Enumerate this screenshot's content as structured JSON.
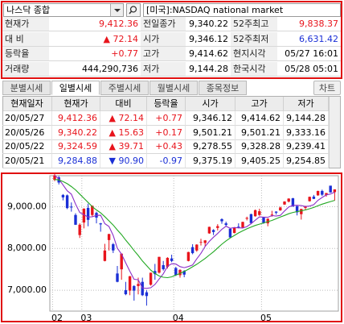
{
  "header": {
    "index": "나스닥 종합",
    "market": "[미국]:NASDAQ national market"
  },
  "quote": {
    "rows": [
      [
        "현재가",
        "9,412.36",
        "전일종가",
        "9,340.22",
        "52주최고",
        "9,838.37"
      ],
      [
        "대 비",
        "▲ 72.14",
        "시가",
        "9,346.12",
        "52주최저",
        "6,631.42"
      ],
      [
        "등락율",
        "+0.77",
        "고가",
        "9,414.62",
        "현지시각",
        "05/27 16:01"
      ],
      [
        "거래량",
        "444,290,736",
        "저가",
        "9,144.28",
        "한국시각",
        "05/28 05:01"
      ]
    ]
  },
  "tabs": {
    "items": [
      "분별시세",
      "일별시세",
      "주별시세",
      "월별시세",
      "종목정보"
    ],
    "active": 1,
    "button": "차트"
  },
  "table": {
    "columns": [
      "현재일자",
      "현재가",
      "대비",
      "등락율",
      "시가",
      "고가",
      "저가"
    ],
    "rows": [
      [
        "20/05/27",
        "9,412.36",
        "▲ 72.14",
        "+0.77",
        "9,346.12",
        "9,414.62",
        "9,144.28"
      ],
      [
        "20/05/26",
        "9,340.22",
        "▲ 15.63",
        "+0.17",
        "9,501.21",
        "9,501.21",
        "9,333.16"
      ],
      [
        "20/05/22",
        "9,324.59",
        "▲ 39.71",
        "+0.43",
        "9,278.55",
        "9,328.28",
        "9,239.41"
      ],
      [
        "20/05/21",
        "9,284.88",
        "▼ 90.90",
        "-0.97",
        "9,375.19",
        "9,405.25",
        "9,254.85"
      ]
    ]
  },
  "chart_data": {
    "type": "candlestick",
    "categories": [
      "02",
      null,
      null,
      null,
      null,
      null,
      null,
      "03",
      null,
      null,
      null,
      null,
      null,
      null,
      null,
      null,
      null,
      null,
      null,
      null,
      null,
      null,
      null,
      null,
      null,
      null,
      null,
      null,
      null,
      "04",
      null,
      null,
      null,
      null,
      null,
      null,
      null,
      null,
      null,
      null,
      null,
      null,
      null,
      null,
      null,
      null,
      null,
      null,
      null,
      null,
      "05",
      null,
      null,
      null,
      null,
      null,
      null,
      null,
      null,
      null,
      null,
      null,
      null,
      null,
      null,
      null,
      null,
      null
    ],
    "open": [
      9640,
      9700,
      9280,
      9270,
      9000,
      8800,
      8320,
      8620,
      8970,
      8800,
      8850,
      8600,
      7700,
      8200,
      8100,
      7400,
      7500,
      7000,
      6990,
      7100,
      7100,
      7200,
      6950,
      7130,
      7460,
      7420,
      7600,
      7560,
      7760,
      7530,
      7360,
      7460,
      7700,
      8030,
      7950,
      8140,
      8130,
      8360,
      8440,
      8490,
      8700,
      8600,
      8470,
      8370,
      8520,
      8500,
      8710,
      8820,
      8770,
      8800,
      8750,
      8600,
      8790,
      8880,
      8910,
      9050,
      9120,
      9200,
      9010,
      8820,
      8970,
      9130,
      9240,
      9270,
      9375,
      9279,
      9501,
      9346
    ],
    "high": [
      9780,
      9730,
      9300,
      9290,
      9100,
      8840,
      8600,
      8960,
      9070,
      9030,
      8880,
      8610,
      8110,
      8350,
      8130,
      7580,
      7880,
      7200,
      7340,
      7120,
      7300,
      7300,
      7000,
      7420,
      7630,
      7800,
      7700,
      7790,
      7850,
      7560,
      7500,
      7480,
      7920,
      8100,
      8100,
      8230,
      8200,
      8520,
      8460,
      8580,
      8720,
      8640,
      8490,
      8510,
      8600,
      8640,
      8760,
      8830,
      8930,
      8950,
      8750,
      8720,
      8900,
      8890,
      9000,
      9130,
      9200,
      9210,
      9030,
      8950,
      9020,
      9240,
      9280,
      9380,
      9405,
      9328,
      9501,
      9415
    ],
    "low": [
      9610,
      9530,
      9150,
      8940,
      8880,
      8560,
      8250,
      8480,
      8530,
      8760,
      8600,
      8400,
      7690,
      7950,
      7890,
      7190,
      7250,
      6880,
      6880,
      6750,
      6900,
      6860,
      6631,
      7110,
      7250,
      7400,
      7470,
      7520,
      7670,
      7340,
      7300,
      7310,
      7690,
      7860,
      7920,
      8070,
      8050,
      8350,
      8320,
      8430,
      8590,
      8520,
      8250,
      8360,
      8480,
      8480,
      8670,
      8580,
      8760,
      8780,
      8590,
      8530,
      8760,
      8810,
      8900,
      9040,
      9100,
      9000,
      8790,
      8690,
      8930,
      9120,
      9180,
      9260,
      9255,
      9239,
      9333,
      9144
    ],
    "close": [
      9750,
      9577,
      9221,
      8966,
      8980,
      8566,
      8567,
      8952,
      8684,
      9018,
      8738,
      8576,
      7950,
      8344,
      7952,
      7201,
      7875,
      6904,
      7335,
      6989,
      7150,
      6880,
      6861,
      7418,
      7384,
      7798,
      7502,
      7774,
      7700,
      7360,
      7487,
      7373,
      7913,
      7887,
      8091,
      8153,
      8192,
      8516,
      8393,
      8533,
      8650,
      8561,
      8263,
      8495,
      8494,
      8634,
      8730,
      8607,
      8915,
      8890,
      8605,
      8710,
      8809,
      8855,
      8980,
      9121,
      9192,
      9002,
      8863,
      8943,
      9015,
      9235,
      9185,
      9375,
      9285,
      9325,
      9340,
      9412
    ],
    "up_color": "#e8141c",
    "down_color": "#1a2fd6",
    "lines": [
      {
        "color": "#8b2fc9",
        "values": [
          9750,
          9660,
          9520,
          9380,
          9299,
          9062,
          8860,
          8806,
          8750,
          8757,
          8792,
          8794,
          8593,
          8525,
          8312,
          8005,
          7864,
          7655,
          7453,
          7261,
          7251,
          7052,
          7043,
          7060,
          7139,
          7268,
          7393,
          7575,
          7632,
          7627,
          7565,
          7539,
          7567,
          7604,
          7750,
          7883,
          8047,
          8168,
          8269,
          8357,
          8457,
          8531,
          8480,
          8500,
          8493,
          8489,
          8523,
          8592,
          8676,
          8755,
          8749,
          8745,
          8786,
          8774,
          8792,
          8895,
          8991,
          9030,
          9032,
          9024,
          9003,
          9012,
          9048,
          9151,
          9219,
          9281,
          9302,
          9347
        ]
      },
      {
        "color": "#22a822",
        "values": [
          9650,
          9640,
          9600,
          9550,
          9480,
          9400,
          9300,
          9200,
          9100,
          9000,
          8920,
          8850,
          8760,
          8660,
          8560,
          8440,
          8330,
          8200,
          8080,
          7950,
          7830,
          7700,
          7590,
          7480,
          7400,
          7340,
          7310,
          7300,
          7320,
          7360,
          7400,
          7450,
          7500,
          7560,
          7620,
          7690,
          7760,
          7840,
          7920,
          8010,
          8100,
          8180,
          8250,
          8310,
          8370,
          8420,
          8470,
          8510,
          8550,
          8580,
          8610,
          8640,
          8670,
          8710,
          8750,
          8790,
          8830,
          8860,
          8880,
          8900,
          8920,
          8950,
          8980,
          9020,
          9060,
          9090,
          9120,
          9150
        ]
      }
    ],
    "ylim": [
      6500,
      9740
    ],
    "yticks": [
      {
        "value": 7000,
        "label": "7,000.00"
      },
      {
        "value": 8000,
        "label": "8,000.00"
      },
      {
        "value": 9000,
        "label": "9,000.00"
      }
    ],
    "grid": true
  }
}
